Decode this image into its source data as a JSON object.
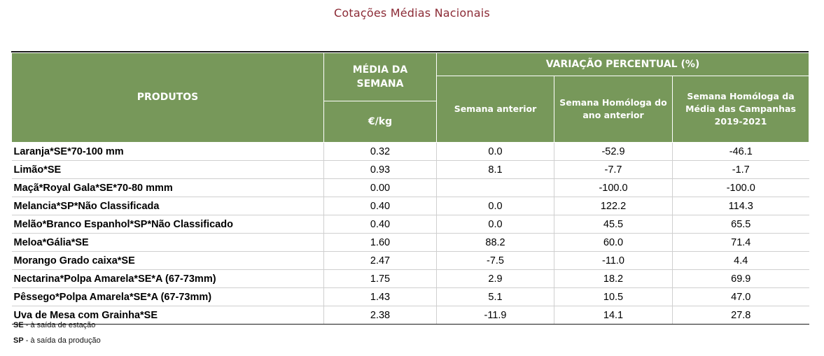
{
  "title": "Cotações Médias Nacionais",
  "table": {
    "headers": {
      "produtos": "PRODUTOS",
      "media": "MÉDIA DA SEMANA",
      "unit": "€/kg",
      "variacao": "VARIAÇÃO PERCENTUAL (%)",
      "semana_anterior": "Semana anterior",
      "homologa_ano": "Semana Homóloga do ano anterior",
      "homologa_campanhas": "Semana Homóloga da Média das Campanhas 2019-2021"
    },
    "rows": [
      {
        "produto": "Laranja*SE*70-100 mm",
        "media": "0.32",
        "anterior": "0.0",
        "homologa": "-52.9",
        "campanhas": "-46.1"
      },
      {
        "produto": "Limão*SE",
        "media": "0.93",
        "anterior": "8.1",
        "homologa": "-7.7",
        "campanhas": "-1.7"
      },
      {
        "produto": "Maçã*Royal Gala*SE*70-80 mmm",
        "media": "0.00",
        "anterior": "",
        "homologa": "-100.0",
        "campanhas": "-100.0"
      },
      {
        "produto": "Melancia*SP*Não Classificada",
        "media": "0.40",
        "anterior": "0.0",
        "homologa": "122.2",
        "campanhas": "114.3"
      },
      {
        "produto": "Melão*Branco Espanhol*SP*Não Classificado",
        "media": "0.40",
        "anterior": "0.0",
        "homologa": "45.5",
        "campanhas": "65.5"
      },
      {
        "produto": "Meloa*Gália*SE",
        "media": "1.60",
        "anterior": "88.2",
        "homologa": "60.0",
        "campanhas": "71.4"
      },
      {
        "produto": "Morango Grado caixa*SE",
        "media": "2.47",
        "anterior": "-7.5",
        "homologa": "-11.0",
        "campanhas": "4.4"
      },
      {
        "produto": "Nectarina*Polpa Amarela*SE*A (67-73mm)",
        "media": "1.75",
        "anterior": "2.9",
        "homologa": "18.2",
        "campanhas": "69.9"
      },
      {
        "produto": "Pêssego*Polpa Amarela*SE*A (67-73mm)",
        "media": "1.43",
        "anterior": "5.1",
        "homologa": "10.5",
        "campanhas": "47.0"
      },
      {
        "produto": "Uva de Mesa com Grainha*SE",
        "media": "2.38",
        "anterior": "-11.9",
        "homologa": "14.1",
        "campanhas": "27.8"
      }
    ]
  },
  "legend": {
    "se_code": "SE",
    "se_text": " - à saída de estação",
    "sp_code": "SP",
    "sp_text": " - à saída da produção"
  },
  "colors": {
    "header_bg": "#77985A",
    "title": "#8B2A35"
  }
}
